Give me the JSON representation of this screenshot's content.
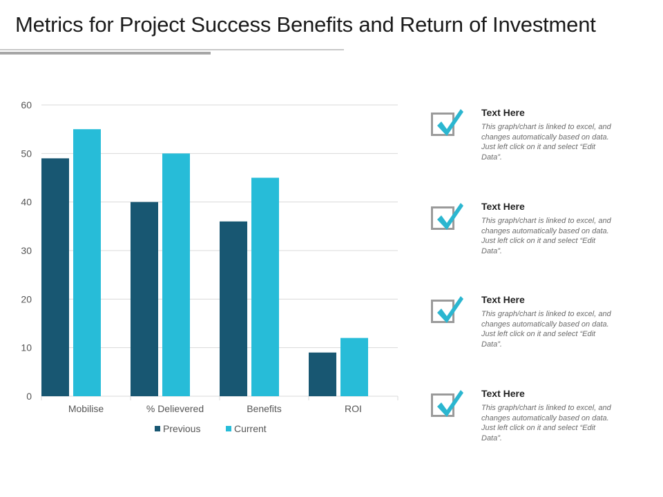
{
  "page": {
    "title": "Metrics for Project Success Benefits and Return of Investment"
  },
  "colors": {
    "previous": "#185772",
    "current": "#27BCD8",
    "gridline": "#d9d9d9",
    "check": "#2bb6d0"
  },
  "chart_data": {
    "type": "bar",
    "categories": [
      "Mobilise",
      "% Delievered",
      "Benefits",
      "ROI"
    ],
    "series": [
      {
        "name": "Previous",
        "values": [
          49,
          40,
          36,
          9
        ]
      },
      {
        "name": "Current",
        "values": [
          55,
          50,
          45,
          12
        ]
      }
    ],
    "yticks": [
      "0",
      "10",
      "20",
      "30",
      "40",
      "50",
      "60"
    ],
    "ylim": [
      0,
      60
    ],
    "grid": true,
    "legend": "bottom",
    "title": "",
    "xlabel": "",
    "ylabel": ""
  },
  "cards": [
    {
      "heading": "Text Here",
      "body": "This graph/chart is linked to excel, and changes automatically based on data. Just left click on it and select “Edit Data”."
    },
    {
      "heading": "Text Here",
      "body": "This graph/chart is linked to excel, and changes automatically based on data. Just left click on it and select “Edit Data”."
    },
    {
      "heading": "Text Here",
      "body": "This graph/chart is linked to excel, and changes automatically based on data. Just left click on it and select “Edit Data”."
    },
    {
      "heading": "Text Here",
      "body": "This graph/chart is linked to excel, and changes automatically based on data. Just left click on it and select “Edit Data”."
    }
  ]
}
